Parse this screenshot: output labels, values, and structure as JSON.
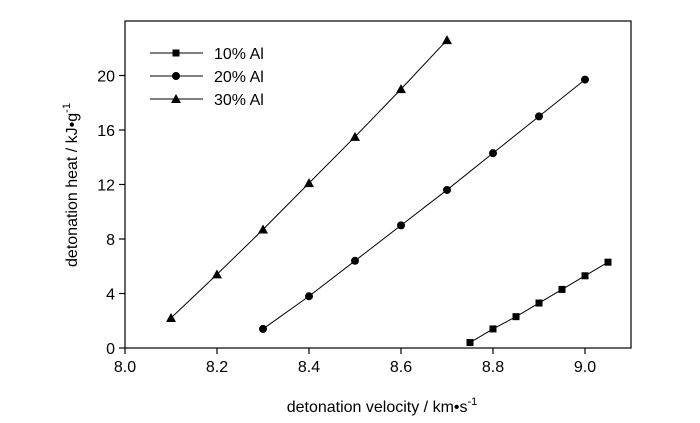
{
  "chart_data": {
    "type": "line",
    "title": "",
    "xlabel": "detonation  velocity  / km•s",
    "xlabel_superscript": "-1",
    "ylabel": "detonation heat / kJ•g",
    "ylabel_superscript": "-1",
    "xlim": [
      8.0,
      9.1
    ],
    "ylim": [
      0,
      24
    ],
    "x_ticks": [
      "8.0",
      "8.2",
      "8.4",
      "8.6",
      "8.8",
      "9.0"
    ],
    "y_ticks": [
      "0",
      "4",
      "8",
      "12",
      "16",
      "20"
    ],
    "grid": false,
    "legend_position": "top-left",
    "series": [
      {
        "name": "10% Al",
        "marker": "square",
        "x": [
          8.75,
          8.8,
          8.85,
          8.9,
          8.95,
          9.0,
          9.05
        ],
        "y": [
          0.4,
          1.4,
          2.3,
          3.3,
          4.3,
          5.3,
          6.3
        ]
      },
      {
        "name": "20% Al",
        "marker": "circle",
        "x": [
          8.3,
          8.4,
          8.5,
          8.6,
          8.7,
          8.8,
          8.9,
          9.0
        ],
        "y": [
          1.4,
          3.8,
          6.4,
          9.0,
          11.6,
          14.3,
          17.0,
          19.7
        ]
      },
      {
        "name": "30% Al",
        "marker": "triangle",
        "x": [
          8.1,
          8.2,
          8.3,
          8.4,
          8.5,
          8.6,
          8.7
        ],
        "y": [
          2.2,
          5.4,
          8.7,
          12.1,
          15.5,
          19.0,
          22.6
        ]
      }
    ]
  }
}
